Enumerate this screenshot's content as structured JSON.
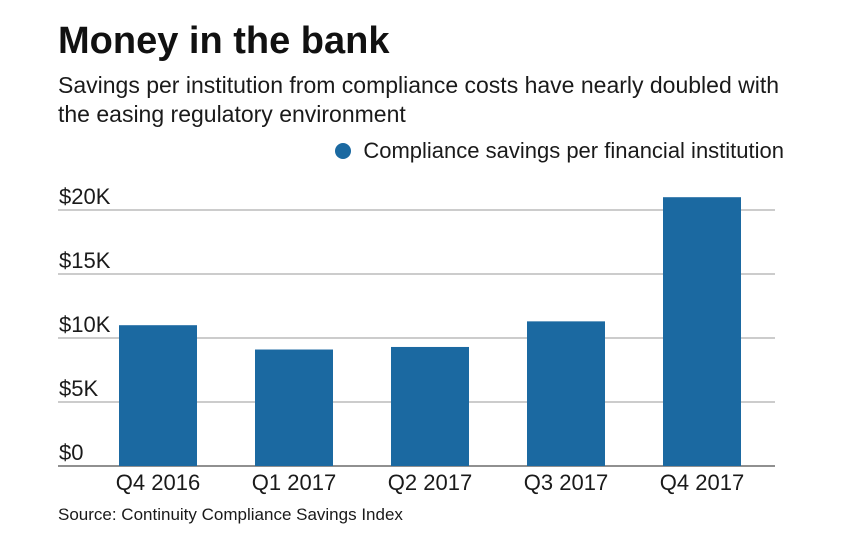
{
  "chart_data": {
    "type": "bar",
    "title": "Money in the bank",
    "subtitle": "Savings per institution from compliance costs have nearly doubled with the easing regulatory environment",
    "categories": [
      "Q4 2016",
      "Q1 2017",
      "Q2 2017",
      "Q3 2017",
      "Q4 2017"
    ],
    "series": [
      {
        "name": "Compliance savings per financial institution",
        "values": [
          11000,
          9100,
          9300,
          11300,
          21000
        ],
        "color": "#1b69a1"
      }
    ],
    "ylim": [
      0,
      20000
    ],
    "yticks": [
      0,
      5000,
      10000,
      15000,
      20000
    ],
    "ytick_labels": [
      "$0",
      "$5K",
      "$10K",
      "$15K",
      "$20K"
    ],
    "xlabel": "",
    "ylabel": "",
    "grid": true,
    "legend_position": "top-right",
    "source": "Source: Continuity Compliance Savings Index"
  }
}
